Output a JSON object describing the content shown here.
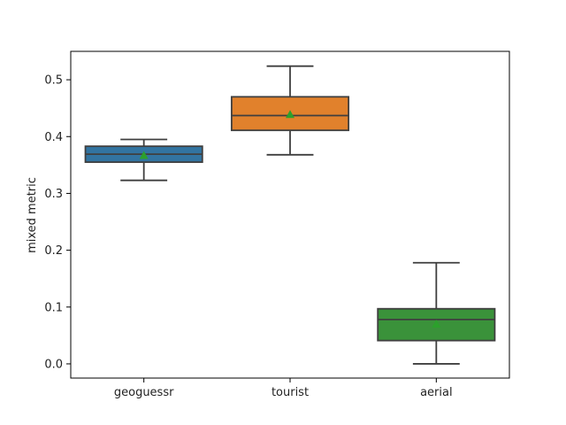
{
  "chart_data": {
    "type": "box",
    "title": "",
    "xlabel": "",
    "ylabel": "mixed metric",
    "ylim": [
      -0.025,
      0.55
    ],
    "yticks": [
      0.0,
      0.1,
      0.2,
      0.3,
      0.4,
      0.5
    ],
    "ytick_labels": [
      "0.0",
      "0.1",
      "0.2",
      "0.3",
      "0.4",
      "0.5"
    ],
    "categories": [
      "geoguessr",
      "tourist",
      "aerial"
    ],
    "colors": [
      "#3274a1",
      "#e1812c",
      "#3a923a"
    ],
    "mean_marker_color": "#2ca02c",
    "line_color": "#3f3f3f",
    "grid": false,
    "boxes": [
      {
        "category": "geoguessr",
        "whisker_low": 0.323,
        "q1": 0.355,
        "median": 0.369,
        "q3": 0.383,
        "whisker_high": 0.395,
        "mean": 0.367
      },
      {
        "category": "tourist",
        "whisker_low": 0.368,
        "q1": 0.411,
        "median": 0.437,
        "q3": 0.47,
        "whisker_high": 0.524,
        "mean": 0.439
      },
      {
        "category": "aerial",
        "whisker_low": 0.0,
        "q1": 0.041,
        "median": 0.078,
        "q3": 0.097,
        "whisker_high": 0.178,
        "mean": 0.07
      }
    ]
  }
}
